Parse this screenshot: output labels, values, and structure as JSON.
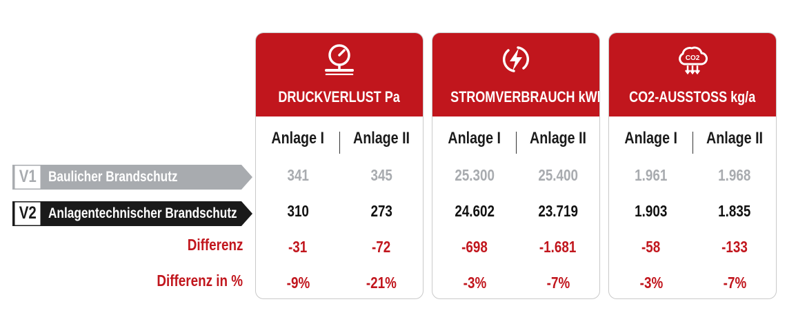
{
  "metrics": [
    {
      "title": "DRUCKVERLUST Pa",
      "icon": "pressure-gauge-icon",
      "col1": "Anlage I",
      "col2": "Anlage II",
      "v1": [
        "341",
        "345"
      ],
      "v2": [
        "310",
        "273"
      ],
      "diff": [
        "-31",
        "-72"
      ],
      "pct": [
        "-9%",
        "-21%"
      ]
    },
    {
      "title": "STROMVERBRAUCH kWh/a",
      "icon": "lightning-icon",
      "col1": "Anlage I",
      "col2": "Anlage II",
      "v1": [
        "25.300",
        "25.400"
      ],
      "v2": [
        "24.602",
        "23.719"
      ],
      "diff": [
        "-698",
        "-1.681"
      ],
      "pct": [
        "-3%",
        "-7%"
      ]
    },
    {
      "title": "CO2-AUSSTOSS kg/a",
      "icon": "co2-cloud-icon",
      "col1": "Anlage I",
      "col2": "Anlage II",
      "v1": [
        "1.961",
        "1.968"
      ],
      "v2": [
        "1.903",
        "1.835"
      ],
      "diff": [
        "-58",
        "-133"
      ],
      "pct": [
        "-3%",
        "-7%"
      ]
    }
  ],
  "rows": {
    "v1": {
      "badge": "V1",
      "label": "Baulicher Brandschutz"
    },
    "v2": {
      "badge": "V2",
      "label": "Anlagentechnischer Brandschutz"
    },
    "diff": "Differenz",
    "pct": "Differenz in %"
  },
  "colors": {
    "accent": "#c1161d",
    "v1_gray": "#a8abaf",
    "v2_dark": "#1a1a1a"
  }
}
